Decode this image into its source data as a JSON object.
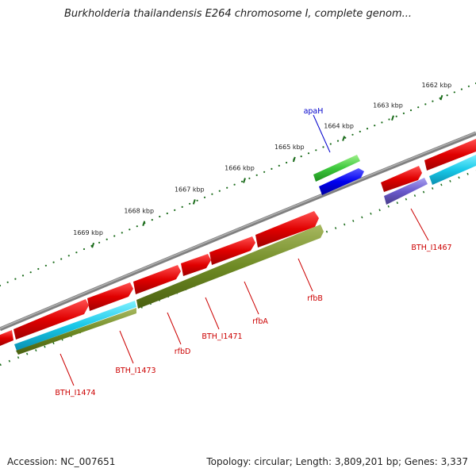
{
  "title": "Burkholderia thailandensis E264 chromosome I, complete genom...",
  "footer": {
    "accession": "Accession: NC_007651",
    "summary": "Topology: circular; Length: 3,809,201 bp; Genes: 3,337"
  },
  "colors": {
    "backbone": "#808080",
    "ticks": "#1a6b1a",
    "gene_label": "#cc0000",
    "highlight_label": "#0000cc"
  },
  "scale": {
    "ticks": [
      {
        "label": "1662 kbp"
      },
      {
        "label": "1663 kbp"
      },
      {
        "label": "1664 kbp"
      },
      {
        "label": "1665 kbp"
      },
      {
        "label": "1666 kbp"
      },
      {
        "label": "1667 kbp"
      },
      {
        "label": "1668 kbp"
      },
      {
        "label": "1669 kbp"
      }
    ]
  },
  "labels": [
    {
      "text": "apaH",
      "kind": "highlight"
    },
    {
      "text": "BTH_I1467",
      "kind": "gene"
    },
    {
      "text": "rfbB",
      "kind": "gene"
    },
    {
      "text": "rfbA",
      "kind": "gene"
    },
    {
      "text": "BTH_I1471",
      "kind": "gene"
    },
    {
      "text": "rfbD",
      "kind": "gene"
    },
    {
      "text": "BTH_I1473",
      "kind": "gene"
    },
    {
      "text": "BTH_I1474",
      "kind": "gene"
    }
  ]
}
